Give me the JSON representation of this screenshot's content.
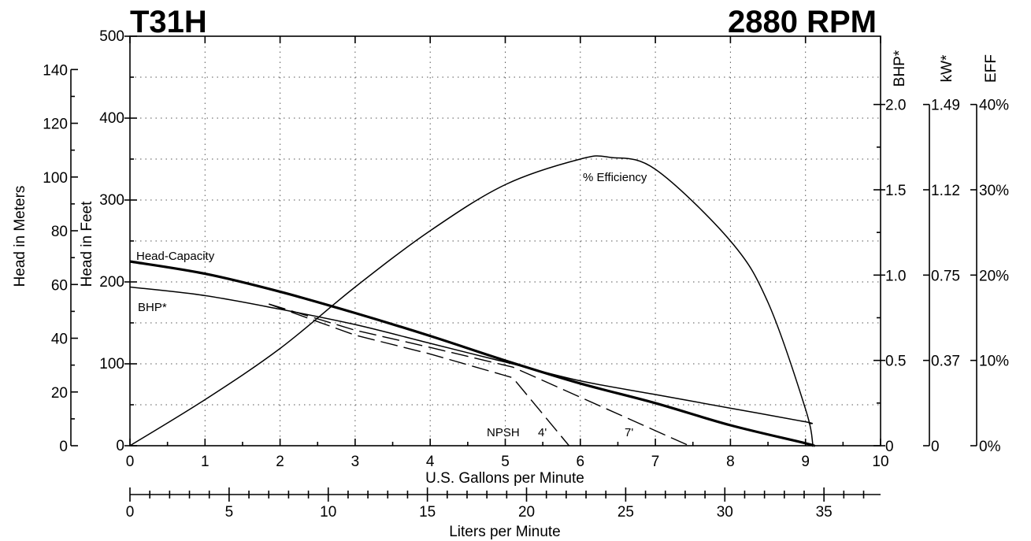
{
  "header": {
    "model": "T31H",
    "speed": "2880 RPM"
  },
  "chart_data": {
    "type": "line",
    "x_gpm_axis": {
      "label": "U.S. Gallons per Minute",
      "range": [
        0,
        10
      ],
      "ticks": [
        "0",
        "1",
        "2",
        "3",
        "4",
        "5",
        "6",
        "7",
        "8",
        "9",
        "10"
      ]
    },
    "x_lpm_axis": {
      "label": "Liters per Minute",
      "range": [
        0,
        37.854
      ],
      "ticks": [
        "0",
        "5",
        "10",
        "15",
        "20",
        "25",
        "30",
        "35"
      ]
    },
    "y_feet_axis": {
      "label": "Head in Feet",
      "range": [
        0,
        500
      ],
      "ticks": [
        "0",
        "100",
        "200",
        "300",
        "400",
        "500"
      ]
    },
    "y_meters_axis": {
      "label": "Head in Meters",
      "ticks": [
        "0",
        "20",
        "40",
        "60",
        "80",
        "100",
        "120",
        "140"
      ]
    },
    "y_bhp_axis": {
      "label": "BHP*",
      "range": [
        0,
        2.4
      ],
      "ticks": [
        "0",
        "0.5",
        "1.0",
        "1.5",
        "2.0"
      ]
    },
    "y_kw_axis": {
      "label": "kW*",
      "ticks": [
        "0",
        "0.37",
        "0.75",
        "1.12",
        "1.49"
      ]
    },
    "y_eff_axis": {
      "label": "EFF",
      "range": [
        0,
        48
      ],
      "ticks": [
        "0%",
        "10%",
        "20%",
        "30%",
        "40%"
      ]
    },
    "grid": true,
    "series": [
      {
        "name": "Head-Capacity",
        "axis": "feet",
        "x": [
          0,
          1,
          2,
          3,
          4,
          5,
          6,
          7,
          8,
          9,
          9.1
        ],
        "y": [
          225,
          210,
          188,
          162,
          134,
          104,
          76,
          52,
          25,
          3,
          0
        ]
      },
      {
        "name": "BHP*",
        "axis": "bhp",
        "x": [
          0,
          1,
          2,
          3,
          4,
          5,
          6,
          7,
          8,
          9,
          9.05
        ],
        "y": [
          0.93,
          0.88,
          0.8,
          0.71,
          0.6,
          0.49,
          0.38,
          0.3,
          0.22,
          0.14,
          0.13
        ]
      },
      {
        "name": "% Efficiency",
        "axis": "eff",
        "x": [
          0,
          1,
          2,
          3,
          4,
          5,
          6,
          6.4,
          7,
          8,
          8.5,
          9,
          9.1
        ],
        "y": [
          0,
          5.4,
          11.4,
          18.6,
          25.2,
          30.6,
          33.6,
          33.8,
          32.4,
          24.0,
          16.8,
          4.3,
          0
        ]
      },
      {
        "name": "NPSH 4'",
        "axis": "feet",
        "x": [
          1.85,
          3,
          4,
          5.1,
          5.85
        ],
        "y": [
          173,
          135,
          112,
          83,
          0
        ]
      },
      {
        "name": "7'",
        "axis": "feet",
        "x": [
          1.85,
          3,
          4,
          5.1,
          7.45
        ],
        "y": [
          173,
          141,
          120,
          96,
          0
        ]
      }
    ],
    "annotations": {
      "head_capacity": "Head-Capacity",
      "bhp": "BHP*",
      "efficiency": "% Efficiency",
      "npsh": "NPSH",
      "npsh_4": "4'",
      "npsh_7": "7'"
    }
  }
}
